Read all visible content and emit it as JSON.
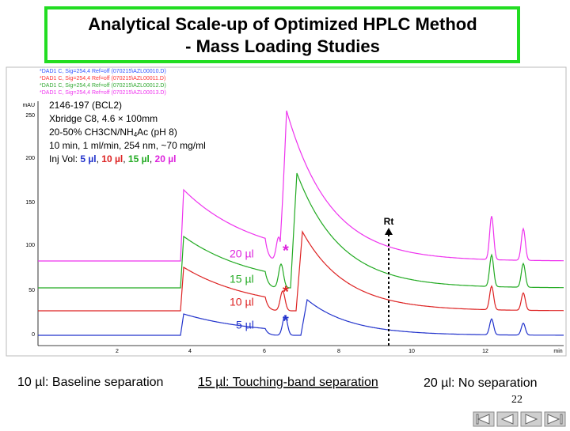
{
  "title": {
    "line1": "Analytical Scale-up of Optimized HPLC Method",
    "line2": "- Mass Loading Studies"
  },
  "chromatogram": {
    "legend": [
      "*DAD1 C, Sig=254,4 Ref=off (070215\\AZL00010.D)",
      "*DAD1 C, Sig=254,4 Ref=off (070215\\AZL00011.D)",
      "*DAD1 C, Sig=254,4 Ref=off (070215\\AZL00012.D)",
      "*DAD1 C, Sig=254,4 Ref=off (070215\\AZL00013.D)"
    ],
    "y_unit": "mAU",
    "y_labels": [
      "250",
      "200",
      "150",
      "100",
      "50",
      "0"
    ],
    "x_labels": [
      "2",
      "4",
      "6",
      "8",
      "10",
      "12"
    ],
    "x_unit": "min",
    "info": {
      "line1": "2146-197 (BCL2)",
      "line2": "Xbridge C8, 4.6 × 100mm",
      "line3": [
        "20-50% CH3CN/NH",
        "4",
        "Ac (pH 8)"
      ],
      "line4": "10 min, 1 ml/min, 254 nm, ~70 mg/ml",
      "line5": [
        "Inj Vol: ",
        "5 µl",
        ", ",
        "10 µl",
        ", ",
        "15 µl",
        ", ",
        "20 µl"
      ]
    },
    "sample_labels": [
      "20 µl",
      "15 µl",
      "10 µl",
      "5 µl"
    ],
    "asterisks": [
      "*",
      "*",
      "*"
    ],
    "rt": "Rt"
  },
  "captions": [
    "10 µl: Baseline separation",
    "15 µl: Touching-band separation",
    "20 µl: No separation"
  ],
  "page_number": "22"
}
